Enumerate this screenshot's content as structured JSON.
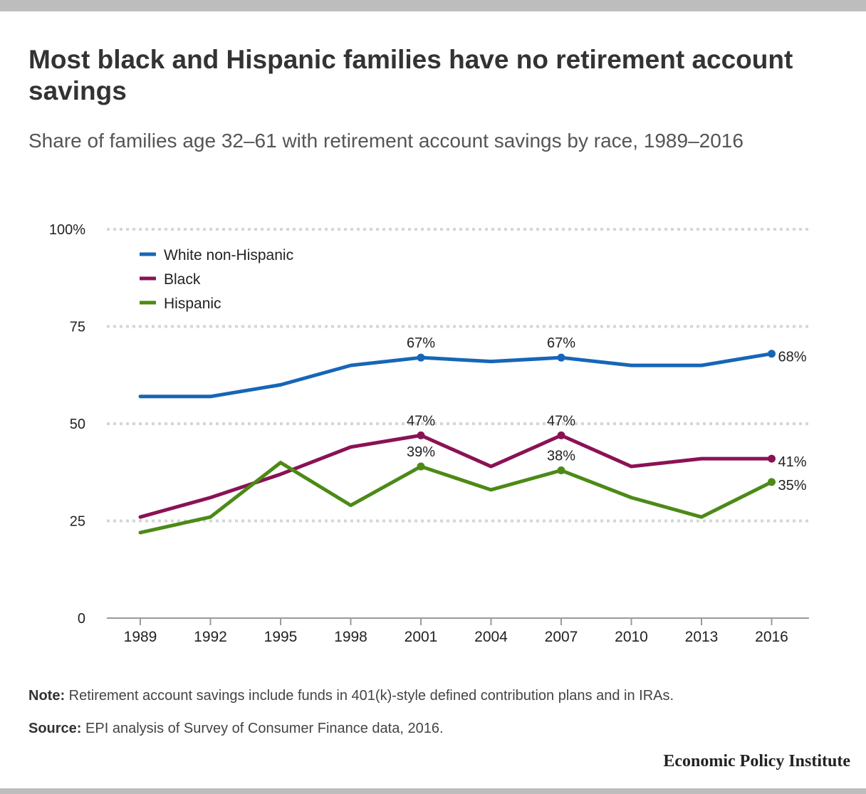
{
  "title": "Most black and Hispanic families have no retirement account savings",
  "subtitle": "Share of families age 32–61 with retirement account savings by race, 1989–2016",
  "note_label": "Note:",
  "note_text": "Retirement account savings include funds in 401(k)-style defined contribution plans and in IRAs.",
  "source_label": "Source:",
  "source_text": "EPI analysis of Survey of Consumer Finance data, 2016.",
  "logo": "Economic Policy Institute",
  "chart_data": {
    "type": "line",
    "title": "Most black and Hispanic families have no retirement account savings",
    "subtitle": "Share of families age 32–61 with retirement account savings by race, 1989–2016",
    "categories": [
      "1989",
      "1992",
      "1995",
      "1998",
      "2001",
      "2004",
      "2007",
      "2010",
      "2013",
      "2016"
    ],
    "ylim": [
      0,
      100
    ],
    "yticks": [
      0,
      25,
      50,
      75,
      100
    ],
    "ytick_labels": [
      "0",
      "25",
      "50",
      "75",
      "100%"
    ],
    "grid": true,
    "legend_position": "top-left",
    "series": [
      {
        "name": "White non-Hispanic",
        "color": "#1666b8",
        "values": [
          57,
          57,
          60,
          65,
          67,
          66,
          67,
          65,
          65,
          68
        ],
        "labels": [
          null,
          null,
          null,
          null,
          "67%",
          null,
          "67%",
          null,
          null,
          "68%"
        ]
      },
      {
        "name": "Black",
        "color": "#8a1254",
        "values": [
          26,
          31,
          37,
          44,
          47,
          39,
          47,
          39,
          41,
          41
        ],
        "labels": [
          null,
          null,
          null,
          null,
          "47%",
          null,
          "47%",
          null,
          null,
          "41%"
        ]
      },
      {
        "name": "Hispanic",
        "color": "#4c8a16",
        "values": [
          22,
          26,
          40,
          29,
          39,
          33,
          38,
          31,
          26,
          35
        ],
        "labels": [
          null,
          null,
          null,
          null,
          "39%",
          null,
          "38%",
          null,
          null,
          "35%"
        ]
      }
    ]
  }
}
